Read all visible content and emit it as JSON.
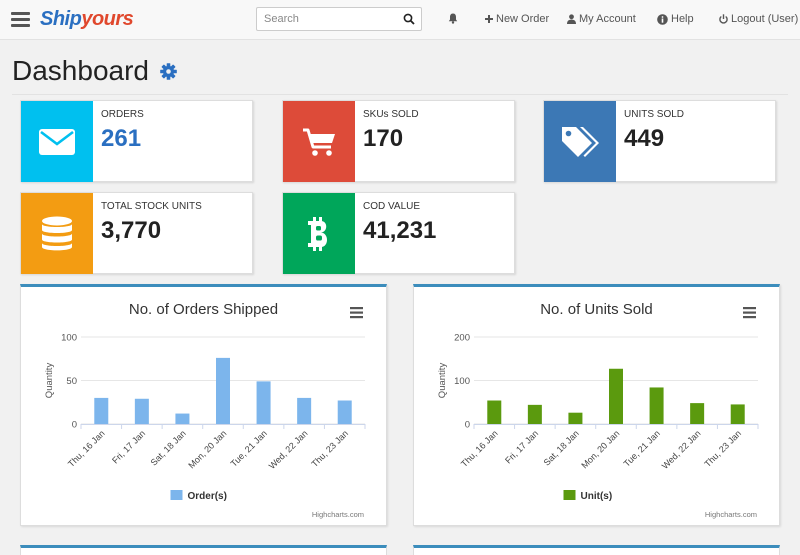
{
  "navbar": {
    "logo_part1": "Ship",
    "logo_part2": "yours",
    "search_placeholder": "Search",
    "new_order": "New Order",
    "my_account": "My Account",
    "help": "Help",
    "logout": "Logout (User)"
  },
  "page": {
    "title": "Dashboard"
  },
  "stats": [
    {
      "label": "ORDERS",
      "value": "261",
      "color": "#00c0ef",
      "icon": "envelope-icon"
    },
    {
      "label": "SKUs SOLD",
      "value": "170",
      "color": "#dd4b39",
      "icon": "cart-icon"
    },
    {
      "label": "UNITS SOLD",
      "value": "449",
      "color": "#3c78b5",
      "icon": "tags-icon"
    },
    {
      "label": "TOTAL STOCK UNITS",
      "value": "3,770",
      "color": "#f39c12",
      "icon": "database-icon"
    },
    {
      "label": "COD VALUE",
      "value": "41,231",
      "color": "#00a65a",
      "icon": "bitcoin-icon"
    }
  ],
  "chart_data": [
    {
      "type": "bar",
      "title": "No. of Orders Shipped",
      "ylabel": "Quantity",
      "categories": [
        "Thu, 16 Jan",
        "Fri, 17 Jan",
        "Sat, 18 Jan",
        "Mon, 20 Jan",
        "Tue, 21 Jan",
        "Wed, 22 Jan",
        "Thu, 23 Jan"
      ],
      "series": [
        {
          "name": "Order(s)",
          "values": [
            30,
            29,
            12,
            76,
            49,
            30,
            27
          ],
          "color": "#7cb5ec"
        }
      ],
      "ylim": [
        0,
        100
      ],
      "yticks": [
        0,
        50,
        100
      ],
      "grid": true,
      "legend": "bottom-center",
      "credits": "Highcharts.com"
    },
    {
      "type": "bar",
      "title": "No. of Units Sold",
      "ylabel": "Quantity",
      "categories": [
        "Thu, 16 Jan",
        "Fri, 17 Jan",
        "Sat, 18 Jan",
        "Mon, 20 Jan",
        "Tue, 21 Jan",
        "Wed, 22 Jan",
        "Thu, 23 Jan"
      ],
      "series": [
        {
          "name": "Unit(s)",
          "values": [
            54,
            44,
            26,
            127,
            84,
            48,
            45
          ],
          "color": "#5b9a0e"
        }
      ],
      "ylim": [
        0,
        200
      ],
      "yticks": [
        0,
        100,
        200
      ],
      "grid": true,
      "legend": "bottom-center",
      "credits": "Highcharts.com"
    }
  ]
}
